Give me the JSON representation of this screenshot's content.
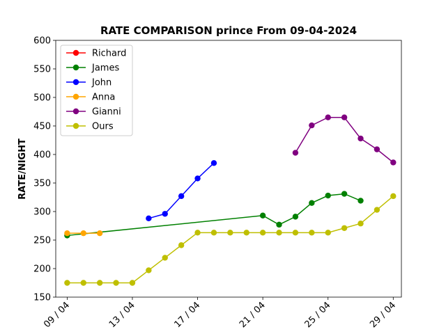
{
  "chart_data": {
    "type": "line",
    "title": "RATE COMPARISON prince From 09-04-2024",
    "xlabel": "",
    "ylabel": "RATE/NIGHT",
    "x_unit": "day of April 2024",
    "xlim": [
      8.3,
      29.5
    ],
    "ylim": [
      150,
      600
    ],
    "x_ticks": [
      9,
      13,
      17,
      21,
      25,
      29
    ],
    "x_tick_labels": [
      "09 / 04",
      "13 / 04",
      "17 / 04",
      "21 / 04",
      "25 / 04",
      "29 / 04"
    ],
    "y_ticks": [
      150,
      200,
      250,
      300,
      350,
      400,
      450,
      500,
      550,
      600
    ],
    "grid": false,
    "legend_position": "upper-left",
    "series": [
      {
        "name": "Richard",
        "color": "#ff0000",
        "points": []
      },
      {
        "name": "James",
        "color": "#008000",
        "points": [
          [
            9,
            258
          ],
          [
            21,
            293
          ],
          [
            22,
            277
          ],
          [
            23,
            291
          ],
          [
            24,
            315
          ],
          [
            25,
            328
          ],
          [
            26,
            331
          ],
          [
            27,
            319
          ]
        ]
      },
      {
        "name": "John",
        "color": "#0000ff",
        "points": [
          [
            14,
            288
          ],
          [
            15,
            296
          ],
          [
            16,
            327
          ],
          [
            17,
            358
          ],
          [
            18,
            385
          ]
        ]
      },
      {
        "name": "Anna",
        "color": "#ffa500",
        "points": [
          [
            9,
            262
          ],
          [
            10,
            262
          ],
          [
            11,
            262
          ]
        ]
      },
      {
        "name": "Gianni",
        "color": "#800080",
        "points": [
          [
            23,
            403
          ],
          [
            24,
            451
          ],
          [
            25,
            465
          ],
          [
            26,
            465
          ],
          [
            27,
            428
          ],
          [
            28,
            409
          ],
          [
            29,
            386
          ]
        ]
      },
      {
        "name": "Ours",
        "color": "#bfbf00",
        "points": [
          [
            9,
            175
          ],
          [
            10,
            175
          ],
          [
            11,
            175
          ],
          [
            12,
            175
          ],
          [
            13,
            175
          ],
          [
            14,
            197
          ],
          [
            15,
            219
          ],
          [
            16,
            241
          ],
          [
            17,
            263
          ],
          [
            18,
            263
          ],
          [
            19,
            263
          ],
          [
            20,
            263
          ],
          [
            21,
            263
          ],
          [
            22,
            263
          ],
          [
            23,
            263
          ],
          [
            24,
            263
          ],
          [
            25,
            263
          ],
          [
            26,
            271
          ],
          [
            27,
            279
          ],
          [
            28,
            303
          ],
          [
            29,
            327
          ]
        ]
      }
    ]
  }
}
